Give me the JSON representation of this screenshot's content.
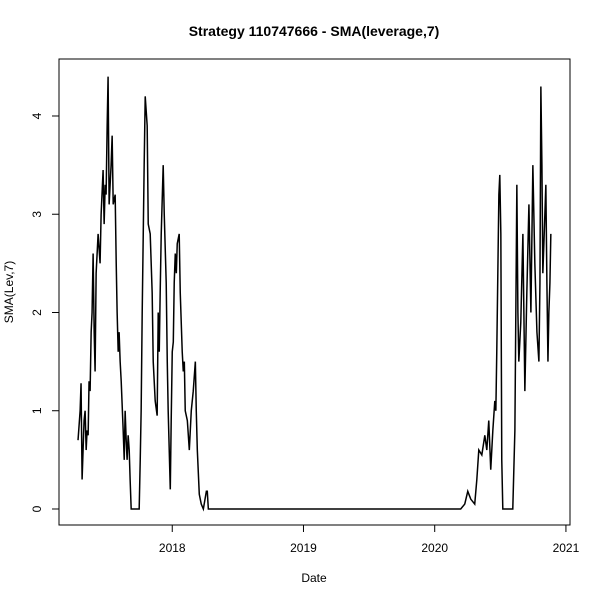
{
  "chart_data": {
    "type": "line",
    "title": "Strategy 110747666 - SMA(leverage,7)",
    "x_label": "Date",
    "y_label": "SMA(Lev,7)",
    "xlim": [
      2017.137,
      2021.031
    ],
    "xticks": [
      2018,
      2019,
      2020,
      2021
    ],
    "ylim": [
      -0.163,
      4.58
    ],
    "yticks": [
      0,
      1,
      2,
      3,
      4
    ],
    "x": [
      2017.282,
      2017.298,
      2017.305,
      2017.313,
      2017.328,
      2017.336,
      2017.344,
      2017.351,
      2017.359,
      2017.366,
      2017.374,
      2017.382,
      2017.389,
      2017.397,
      2017.405,
      2017.412,
      2017.42,
      2017.435,
      2017.45,
      2017.458,
      2017.473,
      2017.481,
      2017.489,
      2017.496,
      2017.504,
      2017.511,
      2017.519,
      2017.534,
      2017.542,
      2017.55,
      2017.565,
      2017.573,
      2017.58,
      2017.588,
      2017.595,
      2017.603,
      2017.611,
      2017.626,
      2017.634,
      2017.641,
      2017.649,
      2017.656,
      2017.664,
      2017.672,
      2017.679,
      2017.687,
      2017.748,
      2017.756,
      2017.763,
      2017.771,
      2017.779,
      2017.786,
      2017.794,
      2017.809,
      2017.817,
      2017.832,
      2017.847,
      2017.855,
      2017.87,
      2017.885,
      2017.893,
      2017.901,
      2017.908,
      2017.916,
      2017.931,
      2017.939,
      2017.954,
      2017.962,
      2017.969,
      2017.985,
      2017.992,
      2018.0,
      2018.008,
      2018.015,
      2018.023,
      2018.031,
      2018.038,
      2018.053,
      2018.061,
      2018.076,
      2018.084,
      2018.092,
      2018.099,
      2018.115,
      2018.13,
      2018.145,
      2018.16,
      2018.176,
      2018.183,
      2018.191,
      2018.206,
      2018.221,
      2018.237,
      2018.26,
      2018.267,
      2018.275,
      2020.198,
      2020.229,
      2020.252,
      2020.275,
      2020.305,
      2020.321,
      2020.336,
      2020.359,
      2020.382,
      2020.397,
      2020.412,
      2020.427,
      2020.443,
      2020.458,
      2020.466,
      2020.473,
      2020.481,
      2020.489,
      2020.496,
      2020.504,
      2020.511,
      2020.519,
      2020.595,
      2020.611,
      2020.626,
      2020.634,
      2020.641,
      2020.656,
      2020.672,
      2020.687,
      2020.702,
      2020.718,
      2020.733,
      2020.748,
      2020.763,
      2020.779,
      2020.794,
      2020.802,
      2020.809,
      2020.817,
      2020.824,
      2020.832,
      2020.847,
      2020.855,
      2020.863,
      2020.87,
      2020.878,
      2020.885
    ],
    "series": [
      {
        "color": "#000000",
        "values": [
          0.7,
          1.0,
          1.28,
          0.3,
          0.9,
          1.0,
          0.6,
          0.8,
          0.75,
          1.3,
          1.2,
          1.8,
          2.0,
          2.6,
          1.8,
          1.4,
          2.4,
          2.8,
          2.5,
          3.0,
          3.45,
          2.9,
          3.3,
          3.2,
          3.9,
          4.4,
          3.1,
          3.5,
          3.8,
          3.1,
          3.2,
          2.5,
          2.0,
          1.6,
          1.8,
          1.5,
          1.3,
          0.8,
          0.5,
          1.0,
          0.7,
          0.5,
          0.75,
          0.6,
          0.3,
          0,
          0,
          0.5,
          1.0,
          2.0,
          2.8,
          3.5,
          4.2,
          3.9,
          2.9,
          2.8,
          2.2,
          1.5,
          1.1,
          0.95,
          2.0,
          1.6,
          2.2,
          2.8,
          3.5,
          3.0,
          2.3,
          1.5,
          1.0,
          0.2,
          0.9,
          1.6,
          1.7,
          2.3,
          2.6,
          2.4,
          2.7,
          2.8,
          2.2,
          1.6,
          1.4,
          1.5,
          1.0,
          0.9,
          0.6,
          1.0,
          1.2,
          1.5,
          1.0,
          0.6,
          0.15,
          0.05,
          0,
          0.18,
          0.18,
          0,
          0,
          0.05,
          0.18,
          0.1,
          0.05,
          0.3,
          0.6,
          0.55,
          0.75,
          0.6,
          0.9,
          0.4,
          0.8,
          1.1,
          1.0,
          1.6,
          2.4,
          3.2,
          3.4,
          2.8,
          0.5,
          0,
          0,
          0.8,
          3.3,
          2.0,
          1.5,
          1.9,
          2.8,
          1.2,
          2.2,
          3.1,
          2.0,
          3.5,
          2.5,
          1.8,
          1.5,
          2.3,
          4.3,
          3.5,
          2.4,
          2.7,
          3.3,
          2.3,
          1.5,
          2.0,
          2.3,
          2.8
        ]
      }
    ]
  }
}
